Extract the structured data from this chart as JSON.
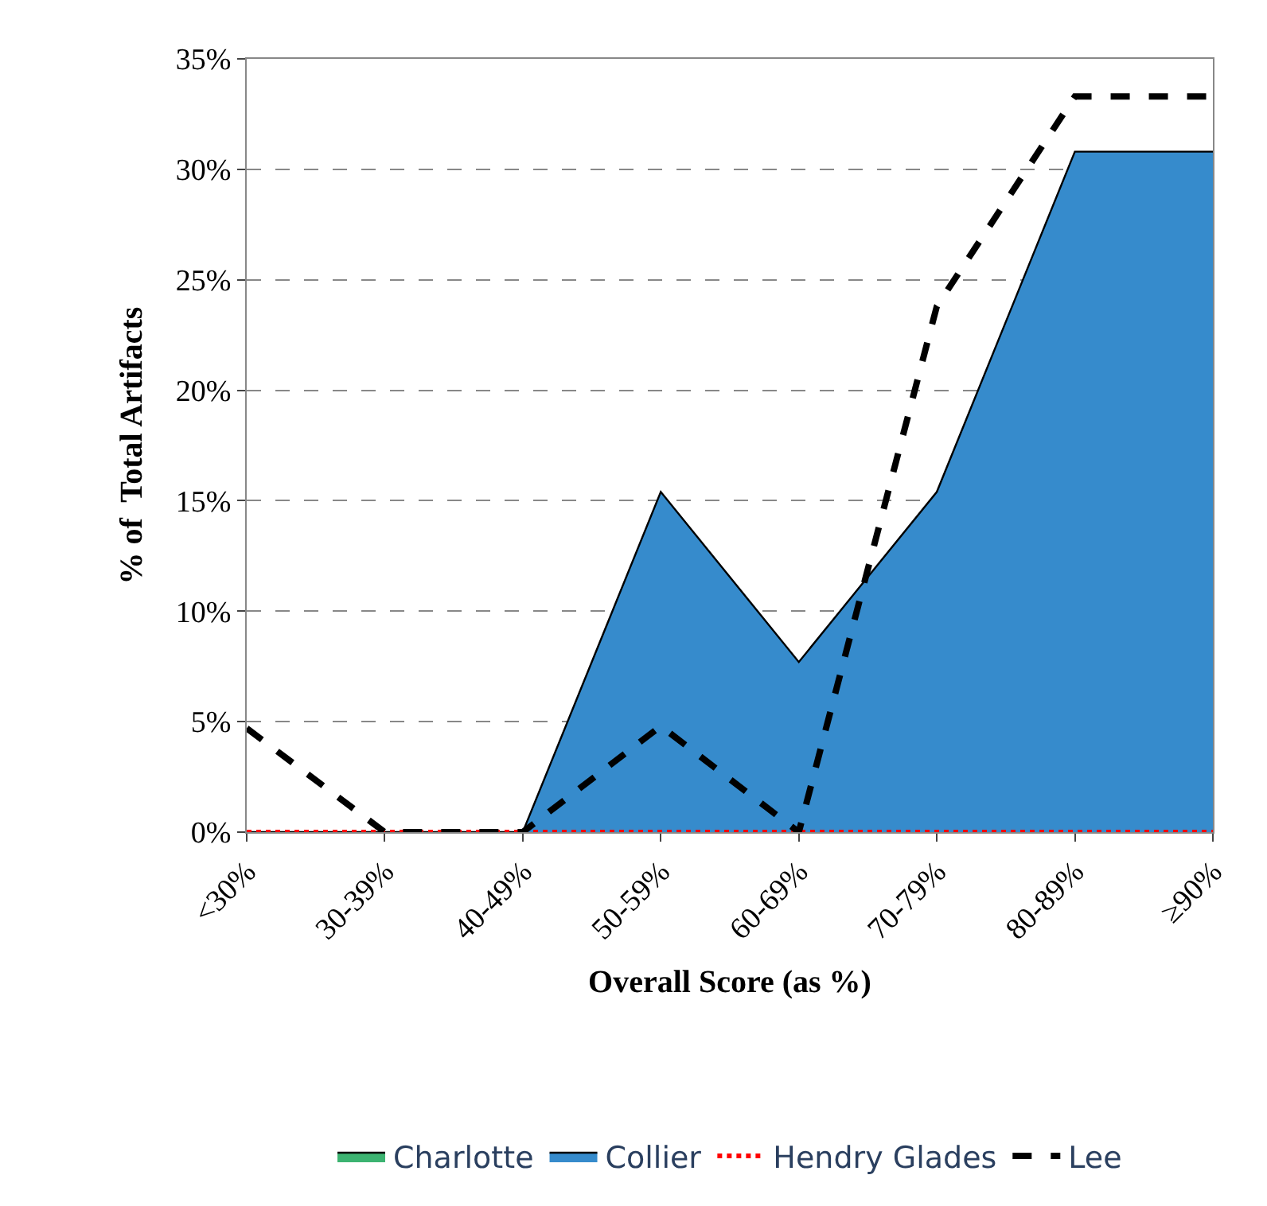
{
  "chart_data": {
    "type": "area",
    "xlabel": "Overall Score (as %)",
    "ylabel": "% of  Total Artifacts",
    "categories": [
      "<30%",
      "30-39%",
      "40-49%",
      "50-59%",
      "60-69%",
      "70-79%",
      "80-89%",
      "≥90%"
    ],
    "series": [
      {
        "name": "Charlotte",
        "color": "#3cb371",
        "values": [
          null,
          null,
          null,
          null,
          null,
          null,
          null,
          null
        ]
      },
      {
        "name": "Collier",
        "color": "#368bcc",
        "values": [
          0,
          0,
          0,
          15.4,
          7.7,
          15.4,
          30.8,
          30.8
        ]
      },
      {
        "name": "Hendry Glades",
        "type": "line",
        "line_style": "dotted",
        "color": "#ff0000",
        "values": [
          0,
          0,
          0,
          0,
          0,
          0,
          0,
          0
        ]
      },
      {
        "name": "Lee",
        "type": "line",
        "line_style": "dashed",
        "color": "#000000",
        "values": [
          4.7,
          0,
          0,
          4.8,
          0,
          23.8,
          33.3,
          33.3
        ]
      }
    ],
    "ylim": [
      0,
      35
    ],
    "yticks": [
      {
        "value": 0,
        "label": "0%"
      },
      {
        "value": 5,
        "label": "5%"
      },
      {
        "value": 10,
        "label": "10%"
      },
      {
        "value": 15,
        "label": "15%"
      },
      {
        "value": 20,
        "label": "20%"
      },
      {
        "value": 25,
        "label": "25%"
      },
      {
        "value": 30,
        "label": "30%"
      },
      {
        "value": 35,
        "label": "35%"
      }
    ],
    "grid": "y",
    "legend": "bottom"
  }
}
